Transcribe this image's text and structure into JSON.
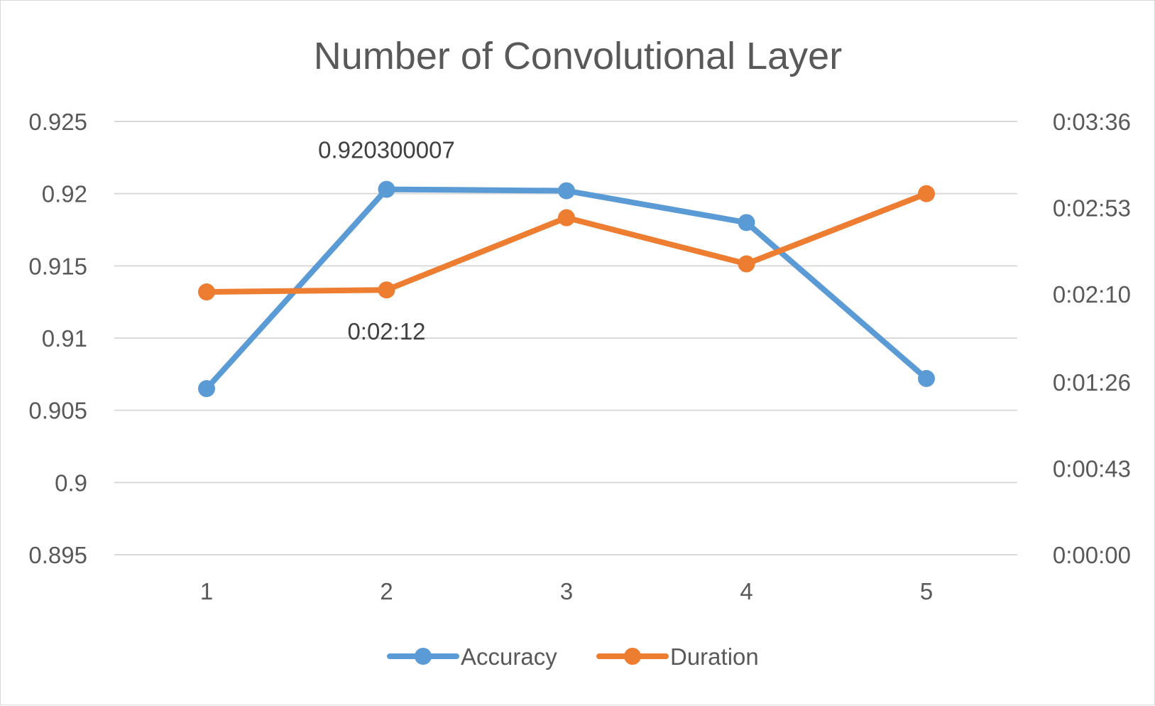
{
  "chart_data": {
    "type": "line",
    "title": "Number of Convolutional Layer",
    "xlabel": "",
    "ylabel": "",
    "categories": [
      "1",
      "2",
      "3",
      "4",
      "5"
    ],
    "y_left": {
      "range": [
        0.895,
        0.925
      ],
      "ticks": [
        "0.895",
        "0.9",
        "0.905",
        "0.91",
        "0.915",
        "0.92",
        "0.925"
      ]
    },
    "y_right": {
      "range_seconds": [
        0,
        216
      ],
      "ticks": [
        "0:00:00",
        "0:00:43",
        "0:01:26",
        "0:02:10",
        "0:02:53",
        "0:03:36"
      ]
    },
    "series": [
      {
        "name": "Accuracy",
        "axis": "left",
        "color": "#5b9bd5",
        "values": [
          0.9065,
          0.920300007,
          0.9202,
          0.918,
          0.9072
        ]
      },
      {
        "name": "Duration",
        "axis": "right",
        "color": "#ed7d31",
        "values": [
          "0:02:11",
          "0:02:12",
          "0:02:48",
          "0:02:25",
          "0:03:00"
        ]
      }
    ],
    "data_labels": [
      {
        "series": "Accuracy",
        "category": "2",
        "text": "0.920300007"
      },
      {
        "series": "Duration",
        "category": "2",
        "text": "0:02:12"
      }
    ],
    "grid": true,
    "legend_position": "bottom"
  },
  "colors": {
    "gridline": "#d9d9d9",
    "text": "#595959",
    "border": "#d9d9d9"
  }
}
